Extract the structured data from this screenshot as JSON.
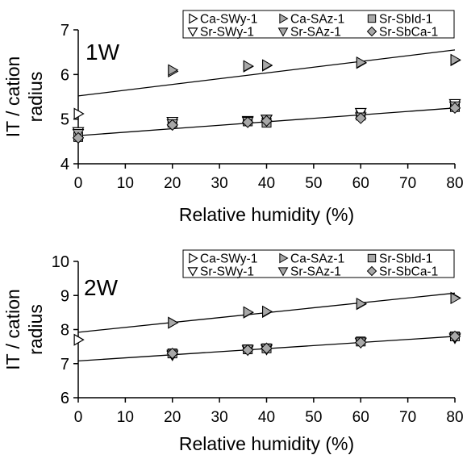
{
  "chart_data": [
    {
      "type": "scatter",
      "panel_label": "1W",
      "xlabel": "Relative humidity (%)",
      "ylabel_lines": [
        "IT / cation",
        "radius"
      ],
      "xlim": [
        0,
        80
      ],
      "ylim": [
        4,
        7
      ],
      "xticks": [
        0,
        10,
        20,
        30,
        40,
        50,
        60,
        70,
        80
      ],
      "yticks": [
        4,
        5,
        6,
        7
      ],
      "series": [
        {
          "name": "Ca-SWy-1",
          "marker": "tri-right-open",
          "x": [
            0,
            20,
            36,
            40,
            60,
            80
          ],
          "y": [
            5.12,
            6.07,
            6.18,
            6.2,
            6.26,
            6.32
          ]
        },
        {
          "name": "Ca-SAz-1",
          "marker": "tri-right-gray",
          "x": [
            20,
            36,
            40,
            60,
            80
          ],
          "y": [
            6.1,
            6.19,
            6.21,
            6.27,
            6.33
          ]
        },
        {
          "name": "Sr-SbId-1",
          "marker": "square-gray",
          "x": [
            0,
            20,
            36,
            40,
            60,
            80
          ],
          "y": [
            4.6,
            4.92,
            4.95,
            4.92,
            5.08,
            5.27
          ]
        },
        {
          "name": "Sr-SWy-1",
          "marker": "tri-down-open",
          "x": [
            0,
            20,
            36,
            40,
            60,
            80
          ],
          "y": [
            4.72,
            4.95,
            4.97,
            5.0,
            5.15,
            5.35
          ]
        },
        {
          "name": "Sr-SAz-1",
          "marker": "tri-down-gray",
          "x": [
            0,
            20,
            36,
            40,
            60,
            80
          ],
          "y": [
            4.68,
            4.9,
            4.95,
            5.0,
            5.05,
            5.3
          ]
        },
        {
          "name": "Sr-SbCa-1",
          "marker": "diamond-gray",
          "x": [
            0,
            20,
            36,
            40,
            60,
            80
          ],
          "y": [
            4.58,
            4.87,
            4.93,
            4.96,
            5.02,
            5.25
          ]
        }
      ],
      "trendlines": [
        {
          "x": [
            0,
            80
          ],
          "y": [
            5.52,
            6.55
          ]
        },
        {
          "x": [
            0,
            80
          ],
          "y": [
            4.63,
            5.25
          ]
        }
      ],
      "legend_rows": [
        [
          "Ca-SWy-1",
          "Ca-SAz-1",
          "Sr-SbId-1"
        ],
        [
          "Sr-SWy-1",
          "Sr-SAz-1",
          "Sr-SbCa-1"
        ]
      ]
    },
    {
      "type": "scatter",
      "panel_label": "2W",
      "xlabel": "Relative humidity (%)",
      "ylabel_lines": [
        "IT / cation",
        "radius"
      ],
      "xlim": [
        0,
        80
      ],
      "ylim": [
        6,
        10
      ],
      "xticks": [
        0,
        10,
        20,
        30,
        40,
        50,
        60,
        70,
        80
      ],
      "yticks": [
        6,
        7,
        8,
        9,
        10
      ],
      "series": [
        {
          "name": "Ca-SWy-1",
          "marker": "tri-right-open",
          "x": [
            0,
            20,
            36,
            40,
            60,
            80
          ],
          "y": [
            7.7,
            8.2,
            8.5,
            8.52,
            8.75,
            8.93
          ]
        },
        {
          "name": "Ca-SAz-1",
          "marker": "tri-right-gray",
          "x": [
            20,
            36,
            40,
            60,
            80
          ],
          "y": [
            8.2,
            8.51,
            8.53,
            8.76,
            8.92
          ]
        },
        {
          "name": "Sr-SbId-1",
          "marker": "square-gray",
          "x": [
            20,
            36,
            40,
            60,
            80
          ],
          "y": [
            7.3,
            7.42,
            7.45,
            7.65,
            7.8
          ]
        },
        {
          "name": "Sr-SWy-1",
          "marker": "tri-down-open",
          "x": [
            20,
            36,
            40,
            60,
            80
          ],
          "y": [
            7.25,
            7.4,
            7.42,
            7.62,
            7.75
          ]
        },
        {
          "name": "Sr-SAz-1",
          "marker": "tri-down-gray",
          "x": [
            20,
            36,
            40,
            60,
            80
          ],
          "y": [
            7.28,
            7.43,
            7.46,
            7.64,
            7.78
          ]
        },
        {
          "name": "Sr-SbCa-1",
          "marker": "diamond-gray",
          "x": [
            20,
            36,
            40,
            60,
            80
          ],
          "y": [
            7.3,
            7.4,
            7.45,
            7.62,
            7.8
          ]
        }
      ],
      "trendlines": [
        {
          "x": [
            0,
            80
          ],
          "y": [
            7.92,
            9.07
          ]
        },
        {
          "x": [
            0,
            80
          ],
          "y": [
            7.08,
            7.8
          ]
        }
      ],
      "legend_rows": [
        [
          "Ca-SWy-1",
          "Ca-SAz-1",
          "Sr-SbId-1"
        ],
        [
          "Sr-SWy-1",
          "Sr-SAz-1",
          "Sr-SbCa-1"
        ]
      ]
    }
  ],
  "colors": {
    "marker_fill": "#a8a8a8",
    "marker_open_fill": "#ffffff",
    "stroke": "#000000"
  }
}
